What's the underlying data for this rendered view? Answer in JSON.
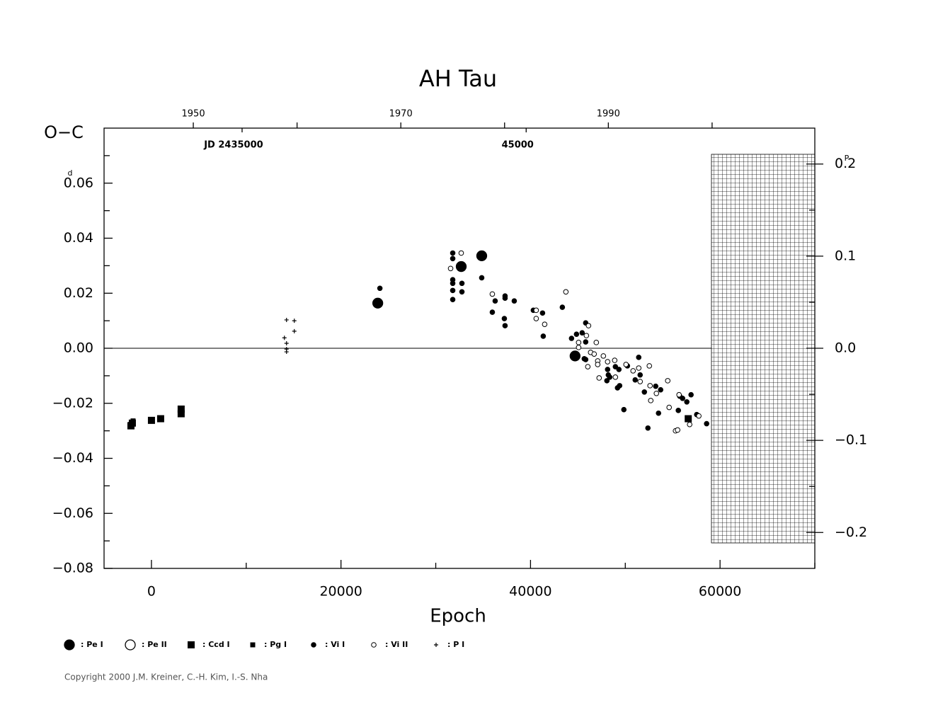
{
  "chart_data": {
    "type": "scatter",
    "title": "AH Tau",
    "xlabel": "Epoch",
    "ylabel": "O−C",
    "y_unit": "d",
    "y2_unit": "P",
    "xlim": [
      -5000,
      70000
    ],
    "xticks": [
      0,
      20000,
      40000,
      60000
    ],
    "xminor": [
      10000,
      30000,
      50000,
      70000
    ],
    "ylim": [
      -0.08,
      0.08
    ],
    "yticks": [
      {
        "value": -0.08,
        "label": "−0.08"
      },
      {
        "value": -0.06,
        "label": "−0.06"
      },
      {
        "value": -0.04,
        "label": "−0.04"
      },
      {
        "value": -0.02,
        "label": "−0.02"
      },
      {
        "value": 0,
        "label": "0.00"
      },
      0.02,
      0.04,
      0.06
    ],
    "yminor": [
      -0.07,
      -0.05,
      -0.03,
      -0.01,
      0.01,
      0.03,
      0.05,
      0.07
    ],
    "y2lim": [
      -0.239,
      0.239
    ],
    "y2ticks": [
      {
        "value": -0.2,
        "label": "−0.2"
      },
      {
        "value": -0.1,
        "label": "−0.1"
      },
      {
        "value": 0,
        "label": "0.0"
      },
      0.1,
      0.2
    ],
    "y2minor": [
      -0.15,
      -0.05,
      0.05,
      0.15
    ],
    "x2lim": [
      1941.4,
      2009.9
    ],
    "x2ticks": [
      1950,
      1970,
      1990
    ],
    "x2minor": [
      1960,
      1980,
      2000
    ],
    "jd_labels": [
      {
        "value": 2435000,
        "label": "JD 2435000"
      },
      {
        "value": 2445000,
        "label": "45000"
      }
    ],
    "zero_line": true,
    "series": [
      {
        "name": ": Pe I",
        "color": "#000000",
        "marker": "circle",
        "marker_size": "large",
        "filled": true,
        "x": [
          23881,
          32687,
          34851,
          44701
        ],
        "values": [
          0.0164,
          0.0297,
          0.0336,
          -0.0028
        ]
      },
      {
        "name": ": Pe II",
        "color": "#000000",
        "marker": "circle",
        "marker_size": "large",
        "filled": false,
        "x": [],
        "values": []
      },
      {
        "name": ": Ccd I",
        "color": "#000000",
        "marker": "square",
        "marker_size": "large",
        "filled": true,
        "x": [
          -2164,
          -2015,
          0,
          970,
          3134,
          3134,
          56642
        ],
        "values": [
          -0.0282,
          -0.0272,
          -0.0262,
          -0.0256,
          -0.0221,
          -0.0238,
          -0.0256
        ]
      },
      {
        "name": ": Pg I",
        "color": "#000000",
        "marker": "square",
        "marker_size": "small",
        "filled": true,
        "x": [
          -2239,
          -1940,
          75,
          1045,
          3209
        ],
        "values": [
          -0.0277,
          -0.0264,
          -0.0259,
          -0.0256,
          -0.0226
        ]
      },
      {
        "name": ": Vi I",
        "color": "#000000",
        "marker": "circle",
        "marker_size": "small",
        "filled": true,
        "x": [
          24105,
          31792,
          31792,
          31792,
          31792,
          31792,
          31792,
          32761,
          32761,
          34851,
          35970,
          36269,
          37313,
          37313,
          37313,
          37239,
          38284,
          40299,
          41269,
          41343,
          43358,
          44328,
          44851,
          45448,
          45821,
          45821,
          45821,
          45672,
          48134,
          48209,
          48060,
          48358,
          48955,
          49328,
          49403,
          49179,
          49851,
          50224,
          51045,
          51418,
          51567,
          52015,
          52388,
          53209,
          53507,
          53731,
          55597,
          55746,
          56045,
          56493,
          56940,
          57537,
          58582
        ],
        "values": [
          0.0218,
          0.0346,
          0.0326,
          0.0249,
          0.0236,
          0.021,
          0.0177,
          0.0236,
          0.0205,
          0.0256,
          0.0131,
          0.0172,
          0.019,
          0.0182,
          0.0082,
          0.0108,
          0.0172,
          0.0138,
          0.0128,
          0.0044,
          0.0149,
          0.0036,
          0.0051,
          0.0056,
          0.0092,
          0.0023,
          -0.0041,
          -0.0038,
          -0.0077,
          -0.0097,
          -0.0118,
          -0.0105,
          -0.0067,
          -0.0077,
          -0.0136,
          -0.0144,
          -0.0223,
          -0.0064,
          -0.0115,
          -0.0033,
          -0.0097,
          -0.0159,
          -0.029,
          -0.0138,
          -0.0236,
          -0.0151,
          -0.0226,
          -0.0174,
          -0.0182,
          -0.0195,
          -0.0169,
          -0.0241,
          -0.0274
        ]
      },
      {
        "name": ": Vi II",
        "color": "#000000",
        "marker": "circle",
        "marker_size": "small",
        "filled": false,
        "x": [
          31567,
          32687,
          35970,
          40597,
          40597,
          41493,
          43731,
          45075,
          45075,
          45896,
          46120,
          46343,
          46045,
          46716,
          46940,
          47090,
          47090,
          47239,
          47687,
          48134,
          48881,
          48955,
          50075,
          50821,
          51418,
          51567,
          52537,
          52612,
          52687,
          53284,
          54478,
          54627,
          55299,
          55522,
          55672,
          56791,
          57761
        ],
        "values": [
          0.029,
          0.0346,
          0.0197,
          0.0138,
          0.0108,
          0.0087,
          0.0205,
          0.0021,
          0.0003,
          0.0046,
          0.0082,
          -0.0015,
          -0.0067,
          -0.0021,
          0.0021,
          -0.0046,
          -0.0059,
          -0.0108,
          -0.0028,
          -0.0049,
          -0.0044,
          -0.0105,
          -0.0059,
          -0.0082,
          -0.0072,
          -0.0121,
          -0.0064,
          -0.0136,
          -0.019,
          -0.0164,
          -0.0118,
          -0.0215,
          -0.03,
          -0.0297,
          -0.0169,
          -0.0277,
          -0.0246
        ]
      },
      {
        "name": ": P I",
        "color": "#000000",
        "marker": "plus",
        "marker_size": "small",
        "filled": true,
        "x": [
          14254,
          15075,
          14030,
          14254,
          14254,
          14254,
          15075
        ],
        "values": [
          0.0103,
          0.01,
          0.0038,
          0.0018,
          -0.0003,
          -0.0013,
          0.0062
        ]
      }
    ]
  },
  "copyright": "Copyright 2000 J.M. Kreiner, C.-H. Kim, I.-S. Nha"
}
